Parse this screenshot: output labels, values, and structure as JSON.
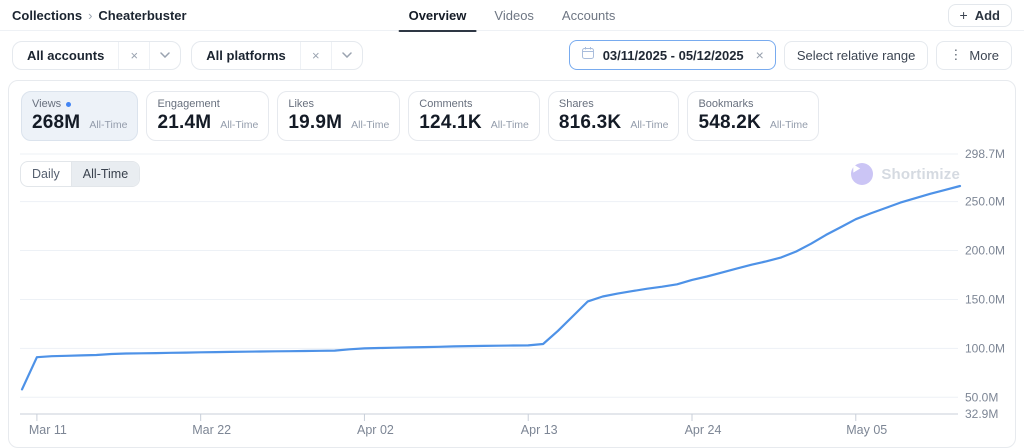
{
  "header": {
    "breadcrumb": {
      "parent": "Collections",
      "separator": "›",
      "current": "Cheaterbuster"
    },
    "tabs": [
      {
        "label": "Overview",
        "active": true
      },
      {
        "label": "Videos",
        "active": false
      },
      {
        "label": "Accounts",
        "active": false
      }
    ],
    "add_button_label": "Add"
  },
  "icons": {
    "close": "×",
    "plus": "+",
    "more_kebab": "⋮"
  },
  "filters": {
    "pills": [
      {
        "label": "All accounts"
      },
      {
        "label": "All platforms"
      }
    ],
    "date_range_value": "03/11/2025 - 05/12/2025",
    "relative_range_label": "Select relative range",
    "more_label": "More"
  },
  "metrics": {
    "period_label": "All-Time",
    "cards": [
      {
        "label": "Views",
        "value": "268M",
        "selected": true
      },
      {
        "label": "Engagement",
        "value": "21.4M",
        "selected": false
      },
      {
        "label": "Likes",
        "value": "19.9M",
        "selected": false
      },
      {
        "label": "Comments",
        "value": "124.1K",
        "selected": false
      },
      {
        "label": "Shares",
        "value": "816.3K",
        "selected": false
      },
      {
        "label": "Bookmarks",
        "value": "548.2K",
        "selected": false
      }
    ]
  },
  "chart_controls": {
    "granularity": [
      {
        "label": "Daily",
        "selected": false
      },
      {
        "label": "All-Time",
        "selected": true
      }
    ]
  },
  "watermark_label": "Shortimize",
  "colors": {
    "line": "#4e92e7",
    "accent_blue": "#4285f4",
    "grid": "#edf1f6",
    "axis_baseline": "#c8cfd9",
    "axis_text": "#7d8695"
  },
  "chart_data": {
    "type": "line",
    "title": "",
    "xlabel": "",
    "ylabel": "",
    "legend": false,
    "grid": true,
    "y_axis": {
      "min": 32.9,
      "max": 298.7,
      "side": "right"
    },
    "y_ticks": [
      {
        "label": "298.7M",
        "value": 298.7
      },
      {
        "label": "250.0M",
        "value": 250
      },
      {
        "label": "200.0M",
        "value": 200
      },
      {
        "label": "150.0M",
        "value": 150
      },
      {
        "label": "100.0M",
        "value": 100
      },
      {
        "label": "50.0M",
        "value": 50
      },
      {
        "label": "32.9M",
        "value": 32.9
      }
    ],
    "x_ticks": [
      {
        "label": "Mar 11",
        "day": 1
      },
      {
        "label": "Mar 22",
        "day": 12
      },
      {
        "label": "Apr 02",
        "day": 23
      },
      {
        "label": "Apr 13",
        "day": 34
      },
      {
        "label": "Apr 24",
        "day": 45
      },
      {
        "label": "May 05",
        "day": 56
      }
    ],
    "total_days": 63,
    "series": [
      {
        "name": "Views",
        "unit": "M",
        "start_date": "Mar 10",
        "end_date": "May 12",
        "values": [
          58,
          91,
          92,
          92.4,
          92.8,
          93.2,
          94.2,
          94.8,
          95,
          95.2,
          95.5,
          95.7,
          96,
          96.2,
          96.4,
          96.6,
          96.8,
          97,
          97.1,
          97.3,
          97.5,
          97.7,
          99,
          100,
          100.4,
          100.7,
          101,
          101.3,
          101.6,
          102,
          102.3,
          102.5,
          102.7,
          102.9,
          103,
          104.5,
          118,
          133,
          148,
          153,
          156,
          158.5,
          161,
          163,
          165.5,
          170,
          173.5,
          177.5,
          181.5,
          185.5,
          189,
          193,
          199,
          207,
          216,
          224,
          232,
          238,
          243.5,
          249,
          253.5,
          258,
          262,
          266
        ]
      }
    ]
  }
}
